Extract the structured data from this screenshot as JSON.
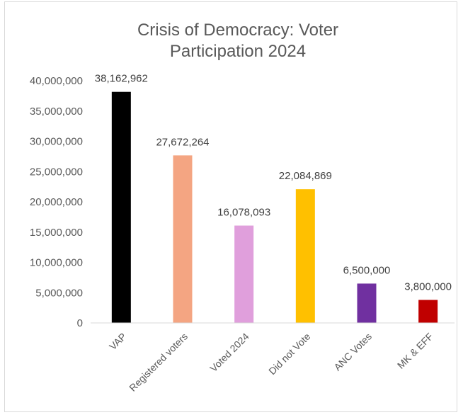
{
  "chart_data": {
    "type": "bar",
    "title_lines": [
      "Crisis of Democracy: Voter",
      "Participation 2024"
    ],
    "categories": [
      "VAP",
      "Registered voters",
      "Voted 2024",
      "Did not Vote",
      "ANC Votes",
      "MK & EFF"
    ],
    "values": [
      38162962,
      27672264,
      16078093,
      22084869,
      6500000,
      3800000
    ],
    "data_labels": [
      "38,162,962",
      "27,672,264",
      "16,078,093",
      "22,084,869",
      "6,500,000",
      "3,800,000"
    ],
    "colors": [
      "#000000",
      "#f4a582",
      "#e09fdc",
      "#ffc000",
      "#7030a0",
      "#c00000"
    ],
    "ylim": [
      0,
      40000000
    ],
    "yticks": [
      0,
      5000000,
      10000000,
      15000000,
      20000000,
      25000000,
      30000000,
      35000000,
      40000000
    ],
    "ytick_labels": [
      "0",
      "5,000,000",
      "10,000,000",
      "15,000,000",
      "20,000,000",
      "25,000,000",
      "30,000,000",
      "35,000,000",
      "40,000,000"
    ],
    "grid": false,
    "legend": "none"
  }
}
